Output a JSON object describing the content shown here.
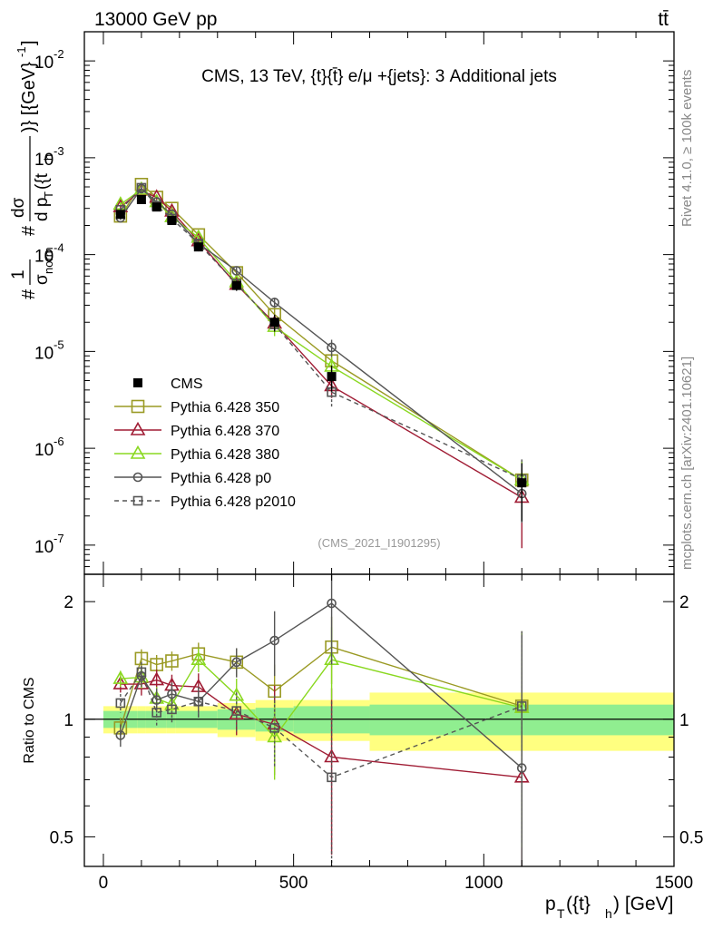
{
  "header": {
    "left": "13000 GeV pp",
    "right": "tt̄"
  },
  "side_labels": {
    "rivet": "Rivet 4.1.0, ≥ 100k events",
    "mcplots": "mcplots.cern.ch [arXiv:2401.10621]"
  },
  "chart_data": [
    {
      "type": "line",
      "panel": "main",
      "title": "CMS, 13 TeV, {t}{t̄} e/μ +{jets}: 3 Additional jets",
      "analysis_id": "(CMS_2021_I1901295)",
      "ylabel": "# frac{1}{σ_norm} #frac{dσ}{d p_T({t}_h)} [(GeV)^-1]",
      "ylabel_parts": {
        "hash1": "#",
        "num1": "1",
        "den1": "σ",
        "den1_sub": "norm",
        "hash2": "#",
        "num2": "dσ",
        "den2": "d p",
        "den2_sub": "T",
        "den2_rest": "({t",
        "den2_sub2": "h",
        "bracket": ")} [{GeV}",
        "bracket_sup": "-1",
        "bracket_end": "]"
      },
      "yscale": "log",
      "ylim": [
        5e-08,
        0.02
      ],
      "yticks": [
        {
          "value": 1e-07,
          "base": "10",
          "exp": "-7"
        },
        {
          "value": 1e-06,
          "base": "10",
          "exp": "-6"
        },
        {
          "value": 1e-05,
          "base": "10",
          "exp": "-5"
        },
        {
          "value": 0.0001,
          "base": "10",
          "exp": "-4"
        },
        {
          "value": 0.001,
          "base": "10",
          "exp": "-3"
        },
        {
          "value": 0.01,
          "base": "10",
          "exp": "-2"
        }
      ],
      "xlim": [
        -50,
        1500
      ],
      "x": [
        45,
        100,
        140,
        180,
        250,
        350,
        450,
        600,
        1100
      ],
      "bin_edges": [
        0,
        90,
        110,
        165,
        190,
        300,
        400,
        500,
        700,
        1500
      ],
      "legend_position": "middle-left",
      "series": [
        {
          "name": "CMS",
          "color": "#000000",
          "marker": "filled-square",
          "line": "none",
          "values": [
            0.00026,
            0.00037,
            0.00031,
            0.000225,
            0.00012,
            4.8e-05,
            2e-05,
            5.5e-06,
            4.4e-07
          ],
          "err_rel": [
            0.08,
            0.08,
            0.08,
            0.08,
            0.1,
            0.12,
            0.2,
            0.3,
            0.6
          ]
        },
        {
          "name": "Pythia 6.428 350",
          "color": "#9a9a24",
          "marker": "open-square",
          "line": "solid",
          "values": [
            0.00025,
            0.00053,
            0.00039,
            0.0003,
            0.00016,
            6.5e-05,
            2.4e-05,
            8e-06,
            4.7e-07
          ],
          "err_rel": [
            0.05,
            0.05,
            0.05,
            0.05,
            0.06,
            0.08,
            0.15,
            0.2,
            0.6
          ]
        },
        {
          "name": "Pythia 6.428 370",
          "color": "#a01c34",
          "marker": "open-triangle",
          "line": "solid",
          "values": [
            0.00031,
            0.00046,
            0.00039,
            0.00028,
            0.000138,
            4.9e-05,
            1.95e-05,
            4.4e-06,
            3.1e-07
          ],
          "err_rel": [
            0.05,
            0.05,
            0.05,
            0.05,
            0.06,
            0.08,
            0.15,
            0.25,
            0.7
          ]
        },
        {
          "name": "Pythia 6.428 380",
          "color": "#8ad820",
          "marker": "open-triangle",
          "line": "solid",
          "values": [
            0.00033,
            0.00047,
            0.00035,
            0.000245,
            0.00015,
            5.2e-05,
            1.8e-05,
            7e-06,
            4.7e-07
          ],
          "err_rel": [
            0.05,
            0.05,
            0.05,
            0.05,
            0.06,
            0.08,
            0.2,
            0.25,
            0.6
          ]
        },
        {
          "name": "Pythia 6.428 p0",
          "color": "#555555",
          "marker": "open-circle",
          "line": "solid",
          "values": [
            0.00024,
            0.00048,
            0.00035,
            0.00026,
            0.00013,
            6.8e-05,
            3.2e-05,
            1.1e-05,
            3.4e-07
          ],
          "err_rel": [
            0.05,
            0.05,
            0.05,
            0.05,
            0.06,
            0.08,
            0.12,
            0.2,
            0.5
          ]
        },
        {
          "name": "Pythia 6.428 p2010",
          "color": "#555555",
          "marker": "open-square-small",
          "line": "dashed",
          "values": [
            0.00029,
            0.00049,
            0.00032,
            0.000235,
            0.00013,
            5e-05,
            1.9e-05,
            3.8e-06,
            4.8e-07
          ],
          "err_rel": [
            0.05,
            0.05,
            0.05,
            0.05,
            0.06,
            0.08,
            0.15,
            0.3,
            0.6
          ]
        }
      ]
    },
    {
      "type": "line",
      "panel": "ratio",
      "ylabel": "Ratio to CMS",
      "xlabel_parts": {
        "p": "p",
        "sub1": "T",
        "mid": "({t}",
        "sub2": "h",
        "end": ") [GeV]"
      },
      "yscale": "log",
      "ylim": [
        0.42,
        2.35
      ],
      "yticks": [
        {
          "value": 0.5,
          "label": "0.5"
        },
        {
          "value": 1,
          "label": "1"
        },
        {
          "value": 2,
          "label": "2"
        }
      ],
      "xlim": [
        -50,
        1500
      ],
      "xticks": [
        {
          "value": 0,
          "label": "0"
        },
        {
          "value": 500,
          "label": "500"
        },
        {
          "value": 1000,
          "label": "1000"
        },
        {
          "value": 1500,
          "label": "1500"
        }
      ],
      "x": [
        45,
        100,
        140,
        180,
        250,
        350,
        450,
        600,
        1100
      ],
      "bands": {
        "bin_edges": [
          0,
          90,
          110,
          165,
          190,
          300,
          400,
          500,
          700,
          1500
        ],
        "stat": [
          0.05,
          0.05,
          0.05,
          0.05,
          0.05,
          0.06,
          0.07,
          0.08,
          0.09
        ],
        "total": [
          0.08,
          0.08,
          0.08,
          0.08,
          0.08,
          0.1,
          0.12,
          0.12,
          0.17
        ],
        "stat_color": "#90ee90",
        "total_color": "#ffff80"
      },
      "series": [
        {
          "name": "Pythia 6.428 350",
          "color": "#9a9a24",
          "marker": "open-square",
          "line": "solid",
          "values": [
            0.95,
            1.43,
            1.38,
            1.41,
            1.47,
            1.4,
            1.18,
            1.53,
            1.08
          ],
          "err_up": [
            0.06,
            0.08,
            0.08,
            0.08,
            0.1,
            0.12,
            0.2,
            0.3,
            0.6
          ],
          "err_dn": [
            0.06,
            0.08,
            0.08,
            0.08,
            0.1,
            0.12,
            0.2,
            0.3,
            0.6
          ]
        },
        {
          "name": "Pythia 6.428 370",
          "color": "#a01c34",
          "marker": "open-triangle",
          "line": "solid",
          "values": [
            1.23,
            1.23,
            1.26,
            1.22,
            1.21,
            1.03,
            0.97,
            0.8,
            0.71
          ],
          "err_up": [
            0.06,
            0.08,
            0.08,
            0.08,
            0.1,
            0.12,
            0.25,
            0.4,
            0.9
          ],
          "err_dn": [
            0.06,
            0.08,
            0.08,
            0.08,
            0.1,
            0.12,
            0.25,
            0.35,
            0.33
          ]
        },
        {
          "name": "Pythia 6.428 380",
          "color": "#8ad820",
          "marker": "open-triangle",
          "line": "solid",
          "values": [
            1.27,
            1.28,
            1.13,
            1.09,
            1.42,
            1.15,
            0.9,
            1.42,
            1.07
          ],
          "err_up": [
            0.06,
            0.08,
            0.08,
            0.08,
            0.1,
            0.12,
            0.2,
            0.3,
            0.6
          ],
          "err_dn": [
            0.06,
            0.08,
            0.08,
            0.08,
            0.1,
            0.12,
            0.2,
            0.3,
            0.6
          ]
        },
        {
          "name": "Pythia 6.428 p0",
          "color": "#555555",
          "marker": "open-circle",
          "line": "solid",
          "values": [
            0.91,
            1.29,
            1.12,
            1.16,
            1.11,
            1.4,
            1.59,
            1.98,
            0.75
          ],
          "err_up": [
            0.06,
            0.08,
            0.08,
            0.08,
            0.1,
            0.12,
            0.3,
            0.6,
            0.9
          ],
          "err_dn": [
            0.06,
            0.08,
            0.08,
            0.08,
            0.1,
            0.12,
            0.3,
            0.6,
            0.35
          ]
        },
        {
          "name": "Pythia 6.428 p2010",
          "color": "#555555",
          "marker": "open-square-small",
          "line": "dashed",
          "values": [
            1.1,
            1.32,
            1.04,
            1.06,
            1.11,
            1.05,
            0.95,
            0.71,
            1.08
          ],
          "err_up": [
            0.06,
            0.08,
            0.08,
            0.08,
            0.1,
            0.12,
            0.2,
            0.4,
            0.6
          ],
          "err_dn": [
            0.06,
            0.08,
            0.08,
            0.08,
            0.1,
            0.12,
            0.2,
            0.4,
            0.6
          ]
        }
      ]
    }
  ]
}
